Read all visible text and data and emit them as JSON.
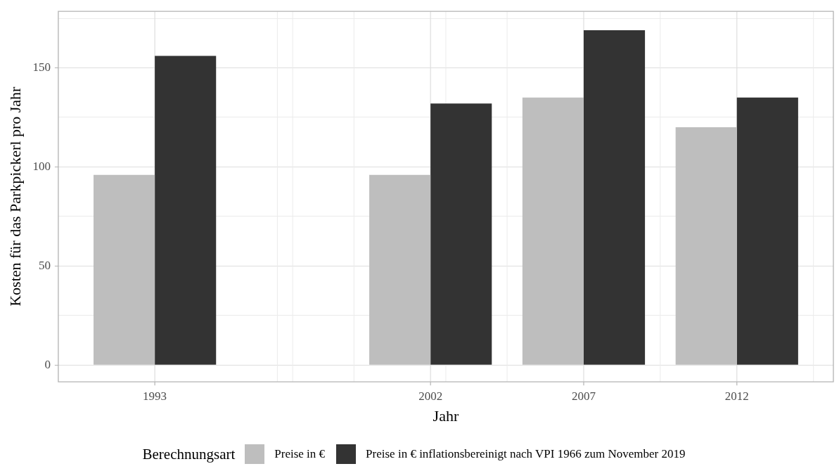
{
  "chart_data": {
    "type": "bar",
    "xlabel": "Jahr",
    "ylabel": "Kosten für das Parkpickerl pro Jahr",
    "legend_title": "Berechnungsart",
    "x": [
      1993,
      2002,
      2007,
      2012
    ],
    "series": [
      {
        "name": "Preise in €",
        "color": "#bebebe",
        "values": [
          96,
          96,
          135,
          120
        ]
      },
      {
        "name": "Preise in € inflationsbereinigt nach VPI 1966 zum November 2019",
        "color": "#333333",
        "values": [
          156,
          132,
          169,
          135
        ]
      }
    ],
    "xlim": [
      1989.85,
      2015.15
    ],
    "xticks": [
      1993,
      {
        "value": 1997,
        "label": null
      },
      {
        "value": 1997.5,
        "label": null
      },
      {
        "value": 1999.5,
        "label": null
      },
      2002,
      {
        "value": 2002.5,
        "label": null
      },
      {
        "value": 2004.5,
        "label": null
      },
      2007,
      {
        "value": 2009.5,
        "label": null
      },
      2012,
      {
        "value": 2014.5,
        "label": null
      }
    ],
    "ylim": [
      -8.5,
      178.5
    ],
    "yticks": [
      0,
      {
        "value": 25,
        "label": null
      },
      50,
      {
        "value": 75,
        "label": null
      },
      100,
      {
        "value": 125,
        "label": null
      },
      150,
      {
        "value": 175,
        "label": null
      }
    ],
    "grid": true,
    "legend": "bottom"
  }
}
